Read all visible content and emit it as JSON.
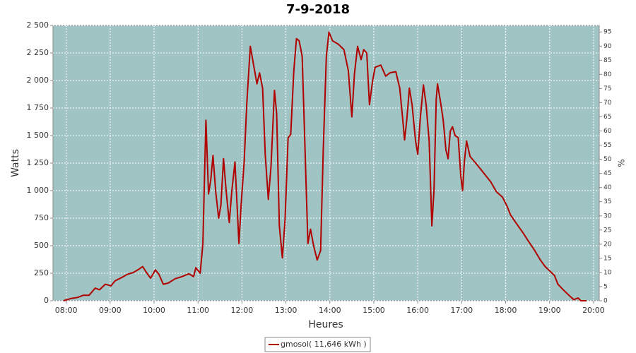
{
  "chart_data": {
    "type": "line",
    "title": "7-9-2018",
    "x_label": "Heures",
    "y_label": "Watts",
    "y2_label": "%",
    "xlim": [
      7.7,
      20.13
    ],
    "xticks": [
      {
        "value": 8,
        "label": "08:00"
      },
      {
        "value": 9,
        "label": "09:00"
      },
      {
        "value": 10,
        "label": "10:00"
      },
      {
        "value": 11,
        "label": "11:00"
      },
      {
        "value": 12,
        "label": "12:00"
      },
      {
        "value": 13,
        "label": "13:00"
      },
      {
        "value": 14,
        "label": "14:00"
      },
      {
        "value": 15,
        "label": "15:00"
      },
      {
        "value": 16,
        "label": "16:00"
      },
      {
        "value": 17,
        "label": "17:00"
      },
      {
        "value": 18,
        "label": "18:00"
      },
      {
        "value": 19,
        "label": "19:00"
      },
      {
        "value": 20,
        "label": "20:00"
      }
    ],
    "ylim": [
      0,
      2500
    ],
    "yticks": [
      0,
      250,
      500,
      750,
      {
        "value": 1000,
        "label": "1 000"
      },
      {
        "value": 1250,
        "label": "1 250"
      },
      {
        "value": 1500,
        "label": "1 500"
      },
      {
        "value": 1750,
        "label": "1 750"
      },
      {
        "value": 2000,
        "label": "2 000"
      },
      {
        "value": 2250,
        "label": "2 250"
      },
      {
        "value": 2500,
        "label": "2 500"
      }
    ],
    "y2lim": [
      0,
      97.3
    ],
    "y2ticks": [
      0,
      5,
      10,
      15,
      20,
      25,
      30,
      35,
      40,
      45,
      50,
      55,
      60,
      65,
      70,
      75,
      80,
      85,
      90,
      95
    ],
    "grid": true,
    "background": "#a0c4c4",
    "x": [
      7.94,
      8.1,
      8.26,
      8.39,
      8.52,
      8.66,
      8.76,
      8.89,
      9.02,
      9.11,
      9.26,
      9.39,
      9.52,
      9.63,
      9.74,
      9.82,
      9.92,
      10.03,
      10.11,
      10.21,
      10.32,
      10.48,
      10.64,
      10.79,
      10.9,
      10.95,
      11.05,
      11.11,
      11.18,
      11.24,
      11.29,
      11.34,
      11.4,
      11.47,
      11.52,
      11.58,
      11.64,
      11.71,
      11.77,
      11.84,
      11.93,
      11.98,
      12.05,
      12.11,
      12.19,
      12.26,
      12.34,
      12.4,
      12.47,
      12.53,
      12.6,
      12.66,
      12.74,
      12.79,
      12.85,
      12.92,
      12.98,
      13.05,
      13.11,
      13.18,
      13.24,
      13.3,
      13.37,
      13.43,
      13.5,
      13.56,
      13.63,
      13.71,
      13.79,
      13.85,
      13.92,
      13.98,
      14.06,
      14.19,
      14.32,
      14.42,
      14.5,
      14.56,
      14.63,
      14.71,
      14.77,
      14.84,
      14.9,
      14.97,
      15.03,
      15.16,
      15.27,
      15.37,
      15.5,
      15.59,
      15.66,
      15.7,
      15.75,
      15.81,
      15.87,
      15.95,
      16.0,
      16.06,
      16.13,
      16.19,
      16.26,
      16.32,
      16.37,
      16.42,
      16.45,
      16.52,
      16.58,
      16.64,
      16.69,
      16.74,
      16.79,
      16.85,
      16.92,
      16.98,
      17.02,
      17.06,
      17.11,
      17.19,
      17.34,
      17.5,
      17.66,
      17.79,
      17.93,
      18.03,
      18.11,
      18.23,
      18.39,
      18.52,
      18.64,
      18.79,
      18.9,
      19.03,
      19.11,
      19.19,
      19.31,
      19.44,
      19.55,
      19.65,
      19.71,
      19.84
    ],
    "series": [
      {
        "name": "gmosol( 11,646 kWh )",
        "color": "#b00000",
        "values": [
          0,
          20,
          30,
          50,
          50,
          115,
          100,
          150,
          135,
          180,
          210,
          240,
          255,
          280,
          310,
          260,
          205,
          280,
          240,
          150,
          160,
          200,
          220,
          245,
          220,
          300,
          250,
          520,
          1640,
          970,
          1100,
          1320,
          1000,
          750,
          870,
          1290,
          1000,
          710,
          1000,
          1260,
          520,
          870,
          1260,
          1800,
          2310,
          2150,
          1970,
          2070,
          1930,
          1320,
          920,
          1220,
          1910,
          1700,
          680,
          390,
          740,
          1480,
          1510,
          2090,
          2380,
          2360,
          2220,
          1450,
          520,
          650,
          500,
          370,
          455,
          1380,
          2220,
          2440,
          2360,
          2330,
          2280,
          2090,
          1670,
          2060,
          2310,
          2190,
          2280,
          2250,
          1780,
          1990,
          2120,
          2140,
          2040,
          2070,
          2080,
          1930,
          1640,
          1460,
          1640,
          1930,
          1780,
          1450,
          1330,
          1670,
          1960,
          1780,
          1450,
          680,
          1010,
          1830,
          1970,
          1800,
          1640,
          1370,
          1290,
          1540,
          1580,
          1500,
          1480,
          1130,
          1000,
          1260,
          1450,
          1310,
          1240,
          1160,
          1080,
          990,
          940,
          860,
          780,
          710,
          620,
          540,
          470,
          370,
          310,
          260,
          230,
          150,
          100,
          50,
          10,
          25,
          0,
          0
        ]
      }
    ]
  }
}
